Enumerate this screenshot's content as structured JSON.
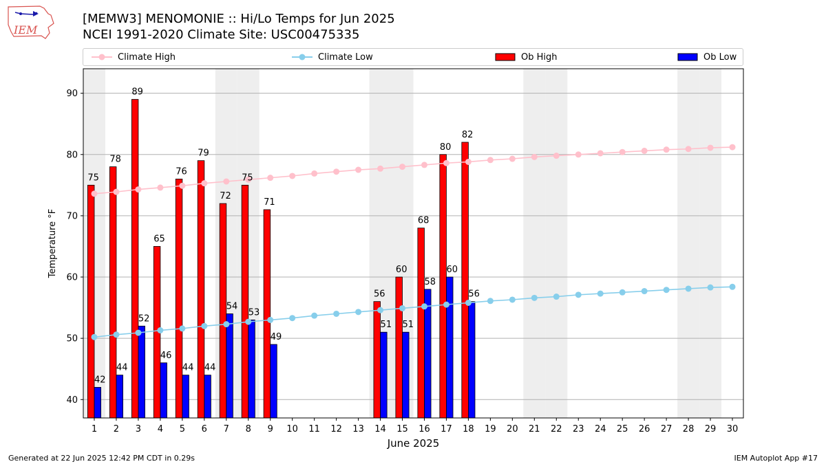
{
  "header": {
    "title_line1": "[MEMW3] MENOMONIE :: Hi/Lo Temps for Jun 2025",
    "title_line2": "NCEI 1991-2020 Climate Site: USC00475335",
    "logo_text": "IEM"
  },
  "footer": {
    "left": "Generated at 22 Jun 2025 12:42 PM CDT in 0.29s",
    "right": "IEM Autoplot App #17"
  },
  "chart_data": {
    "type": "bar",
    "xlabel": "June 2025",
    "ylabel": "Temperature °F",
    "xlim": [
      0.5,
      30.5
    ],
    "ylim": [
      37,
      94
    ],
    "yticks": [
      40,
      50,
      60,
      70,
      80,
      90
    ],
    "grid": "horizontal",
    "legend_position": "top",
    "weekend_shading_days": [
      1,
      7,
      8,
      14,
      15,
      21,
      22,
      28,
      29
    ],
    "categories": [
      1,
      2,
      3,
      4,
      5,
      6,
      7,
      8,
      9,
      10,
      11,
      12,
      13,
      14,
      15,
      16,
      17,
      18,
      19,
      20,
      21,
      22,
      23,
      24,
      25,
      26,
      27,
      28,
      29,
      30
    ],
    "bar_series": [
      {
        "name": "Ob High",
        "color": "#ff0000",
        "values": [
          75,
          78,
          89,
          65,
          76,
          79,
          72,
          75,
          71,
          null,
          null,
          null,
          null,
          56,
          60,
          68,
          80,
          82,
          null,
          null,
          null,
          null,
          null,
          null,
          null,
          null,
          null,
          null,
          null,
          null
        ]
      },
      {
        "name": "Ob Low",
        "color": "#0000ff",
        "values": [
          42,
          44,
          52,
          46,
          44,
          44,
          54,
          53,
          49,
          null,
          null,
          null,
          null,
          51,
          51,
          58,
          60,
          56,
          null,
          null,
          null,
          null,
          null,
          null,
          null,
          null,
          null,
          null,
          null,
          null
        ]
      }
    ],
    "line_series": [
      {
        "name": "Climate High",
        "color": "#ffc0cb",
        "values": [
          73.6,
          73.9,
          74.3,
          74.6,
          74.9,
          75.3,
          75.6,
          75.9,
          76.2,
          76.5,
          76.9,
          77.2,
          77.5,
          77.7,
          78.0,
          78.3,
          78.6,
          78.8,
          79.1,
          79.3,
          79.6,
          79.8,
          80.0,
          80.2,
          80.4,
          80.6,
          80.8,
          80.9,
          81.1,
          81.2
        ]
      },
      {
        "name": "Climate Low",
        "color": "#87ceeb",
        "values": [
          50.2,
          50.6,
          50.9,
          51.3,
          51.6,
          52.0,
          52.3,
          52.7,
          53.0,
          53.3,
          53.7,
          54.0,
          54.3,
          54.6,
          54.9,
          55.2,
          55.5,
          55.8,
          56.1,
          56.3,
          56.6,
          56.8,
          57.1,
          57.3,
          57.5,
          57.7,
          57.9,
          58.1,
          58.3,
          58.4
        ]
      }
    ]
  }
}
